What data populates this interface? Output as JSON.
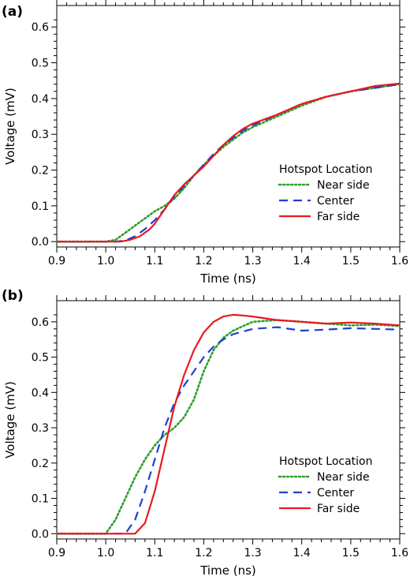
{
  "chart_data": [
    {
      "type": "line",
      "panel_label": "(a)",
      "xlabel": "Time (ns)",
      "ylabel": "Voltage (mV)",
      "xlim": [
        0.9,
        1.6
      ],
      "ylim": [
        -0.015,
        0.66
      ],
      "xticks": [
        0.9,
        1.0,
        1.1,
        1.2,
        1.3,
        1.4,
        1.5,
        1.6
      ],
      "xtick_labels": [
        "0.9",
        "1.0",
        "1.1",
        "1.2",
        "1.3",
        "1.4",
        "1.5",
        "1.6"
      ],
      "yticks": [
        0.0,
        0.1,
        0.2,
        0.3,
        0.4,
        0.5,
        0.6
      ],
      "ytick_labels": [
        "0.0",
        "0.1",
        "0.2",
        "0.3",
        "0.4",
        "0.5",
        "0.6"
      ],
      "grid": false,
      "legend": {
        "title": "Hotspot Location",
        "placement": "bottom-right"
      },
      "series": [
        {
          "name": "Near side",
          "color": "#2ca02c",
          "style": "dotted",
          "x": [
            0.9,
            1.0,
            1.02,
            1.04,
            1.06,
            1.08,
            1.1,
            1.12,
            1.14,
            1.16,
            1.18,
            1.2,
            1.22,
            1.24,
            1.26,
            1.28,
            1.3,
            1.35,
            1.4,
            1.45,
            1.5,
            1.55,
            1.6
          ],
          "y": [
            0.0,
            0.0,
            0.005,
            0.025,
            0.045,
            0.065,
            0.085,
            0.1,
            0.12,
            0.15,
            0.185,
            0.215,
            0.24,
            0.265,
            0.285,
            0.305,
            0.32,
            0.35,
            0.38,
            0.405,
            0.42,
            0.43,
            0.44
          ]
        },
        {
          "name": "Center",
          "color": "#1f3fd6",
          "style": "dashed",
          "x": [
            0.9,
            1.02,
            1.04,
            1.06,
            1.08,
            1.1,
            1.12,
            1.14,
            1.16,
            1.18,
            1.2,
            1.22,
            1.24,
            1.26,
            1.28,
            1.3,
            1.35,
            1.4,
            1.45,
            1.5,
            1.55,
            1.6
          ],
          "y": [
            0.0,
            0.0,
            0.003,
            0.015,
            0.035,
            0.06,
            0.09,
            0.125,
            0.155,
            0.185,
            0.215,
            0.245,
            0.27,
            0.29,
            0.31,
            0.325,
            0.355,
            0.385,
            0.405,
            0.42,
            0.43,
            0.44
          ]
        },
        {
          "name": "Far side",
          "color": "#e8191f",
          "style": "solid",
          "x": [
            0.9,
            1.03,
            1.05,
            1.07,
            1.09,
            1.1,
            1.12,
            1.14,
            1.16,
            1.18,
            1.2,
            1.22,
            1.24,
            1.26,
            1.28,
            1.3,
            1.35,
            1.4,
            1.45,
            1.5,
            1.55,
            1.6
          ],
          "y": [
            0.0,
            0.0,
            0.005,
            0.015,
            0.035,
            0.05,
            0.09,
            0.13,
            0.16,
            0.185,
            0.21,
            0.24,
            0.27,
            0.295,
            0.315,
            0.33,
            0.355,
            0.385,
            0.405,
            0.42,
            0.435,
            0.442
          ]
        }
      ]
    },
    {
      "type": "line",
      "panel_label": "(b)",
      "xlabel": "Time (ns)",
      "ylabel": "Voltage (mV)",
      "xlim": [
        0.9,
        1.6
      ],
      "ylim": [
        -0.015,
        0.66
      ],
      "xticks": [
        0.9,
        1.0,
        1.1,
        1.2,
        1.3,
        1.4,
        1.5,
        1.6
      ],
      "xtick_labels": [
        "0.9",
        "1.0",
        "1.1",
        "1.2",
        "1.3",
        "1.4",
        "1.5",
        "1.6"
      ],
      "yticks": [
        0.0,
        0.1,
        0.2,
        0.3,
        0.4,
        0.5,
        0.6
      ],
      "ytick_labels": [
        "0.0",
        "0.1",
        "0.2",
        "0.3",
        "0.4",
        "0.5",
        "0.6"
      ],
      "grid": false,
      "legend": {
        "title": "Hotspot Location",
        "placement": "bottom-right"
      },
      "series": [
        {
          "name": "Near side",
          "color": "#2ca02c",
          "style": "dotted",
          "x": [
            0.9,
            1.0,
            1.02,
            1.04,
            1.06,
            1.08,
            1.1,
            1.12,
            1.14,
            1.16,
            1.18,
            1.2,
            1.22,
            1.24,
            1.26,
            1.3,
            1.35,
            1.4,
            1.45,
            1.5,
            1.55,
            1.6
          ],
          "y": [
            0.0,
            0.0,
            0.04,
            0.1,
            0.16,
            0.21,
            0.25,
            0.28,
            0.3,
            0.33,
            0.38,
            0.46,
            0.52,
            0.555,
            0.575,
            0.6,
            0.605,
            0.6,
            0.595,
            0.59,
            0.592,
            0.588
          ]
        },
        {
          "name": "Center",
          "color": "#1f3fd6",
          "style": "dashed",
          "x": [
            0.9,
            1.04,
            1.06,
            1.08,
            1.1,
            1.12,
            1.14,
            1.16,
            1.18,
            1.2,
            1.22,
            1.24,
            1.26,
            1.3,
            1.35,
            1.4,
            1.45,
            1.5,
            1.55,
            1.6
          ],
          "y": [
            0.0,
            0.0,
            0.04,
            0.12,
            0.21,
            0.3,
            0.37,
            0.42,
            0.46,
            0.5,
            0.53,
            0.55,
            0.565,
            0.58,
            0.585,
            0.575,
            0.578,
            0.582,
            0.58,
            0.578
          ]
        },
        {
          "name": "Far side",
          "color": "#e8191f",
          "style": "solid",
          "x": [
            0.9,
            1.06,
            1.08,
            1.1,
            1.12,
            1.14,
            1.16,
            1.18,
            1.2,
            1.22,
            1.24,
            1.26,
            1.28,
            1.3,
            1.35,
            1.4,
            1.45,
            1.5,
            1.55,
            1.6
          ],
          "y": [
            0.0,
            0.0,
            0.03,
            0.12,
            0.24,
            0.36,
            0.45,
            0.52,
            0.57,
            0.6,
            0.615,
            0.62,
            0.618,
            0.615,
            0.605,
            0.6,
            0.595,
            0.598,
            0.595,
            0.59
          ]
        }
      ]
    }
  ]
}
